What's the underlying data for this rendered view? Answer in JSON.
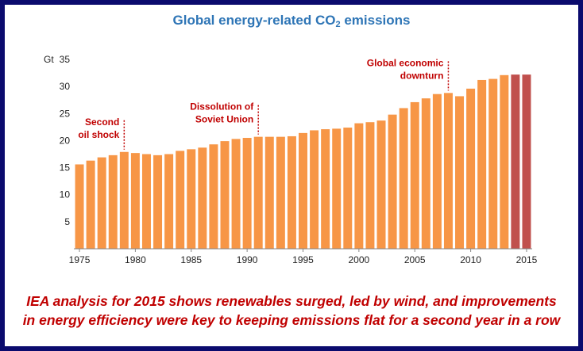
{
  "chart_data": {
    "type": "bar",
    "title_main": "Global energy-related CO",
    "title_sub": "2",
    "title_tail": " emissions",
    "ylabel": "Gt",
    "ylim": [
      0,
      35
    ],
    "yticks": [
      5,
      10,
      15,
      20,
      25,
      30,
      35
    ],
    "xticks": [
      1975,
      1980,
      1985,
      1990,
      1995,
      2000,
      2005,
      2010,
      2015
    ],
    "categories": [
      1975,
      1976,
      1977,
      1978,
      1979,
      1980,
      1981,
      1982,
      1983,
      1984,
      1985,
      1986,
      1987,
      1988,
      1989,
      1990,
      1991,
      1992,
      1993,
      1994,
      1995,
      1996,
      1997,
      1998,
      1999,
      2000,
      2001,
      2002,
      2003,
      2004,
      2005,
      2006,
      2007,
      2008,
      2009,
      2010,
      2011,
      2012,
      2013,
      2014,
      2015
    ],
    "values": [
      15.6,
      16.3,
      16.9,
      17.3,
      17.9,
      17.7,
      17.5,
      17.3,
      17.5,
      18.1,
      18.4,
      18.7,
      19.3,
      19.9,
      20.3,
      20.5,
      20.7,
      20.7,
      20.7,
      20.8,
      21.4,
      21.9,
      22.1,
      22.2,
      22.4,
      23.2,
      23.4,
      23.7,
      24.8,
      26.0,
      27.1,
      27.8,
      28.6,
      28.8,
      28.2,
      29.6,
      31.2,
      31.4,
      32.1,
      32.2,
      32.2
    ],
    "colors": {
      "historical": "#f79646",
      "flat": "#c0504d"
    },
    "flat_years": [
      2014,
      2015
    ],
    "annotations": [
      {
        "lines": [
          "Second",
          "oil shock"
        ],
        "year": 1979
      },
      {
        "lines": [
          "Dissolution of",
          "Soviet Union"
        ],
        "year": 1991
      },
      {
        "lines": [
          "Global economic",
          "downturn"
        ],
        "year": 2008
      }
    ]
  },
  "caption": {
    "line1": "IEA analysis for 2015 shows renewables surged, led by wind, and improvements",
    "line2": "in energy efficiency were key to keeping emissions flat for a second year in a row"
  }
}
